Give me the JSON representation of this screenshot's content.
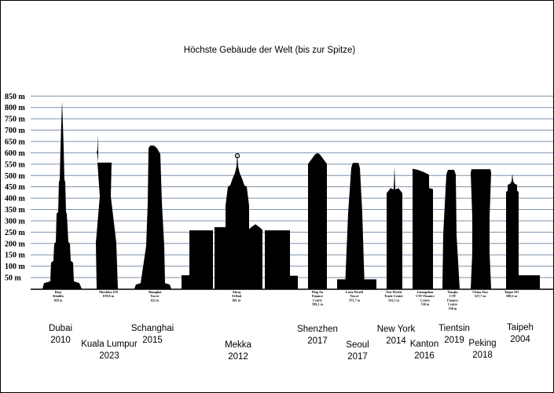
{
  "colors": {
    "grid": "#7f93ab",
    "building": "#000000",
    "background": "#ffffff"
  },
  "chart_data": {
    "type": "bar",
    "title": "Höchste Gebäude der Welt (bis zur Spitze)",
    "ylim": [
      0,
      850
    ],
    "ytick_labels": [
      "50 m",
      "100 m",
      "150 m",
      "200 m",
      "250 m",
      "300 m",
      "350 m",
      "400 m",
      "450 m",
      "500 m",
      "550 m",
      "600 m",
      "650 m",
      "700 m",
      "750 m",
      "800 m",
      "850 m"
    ],
    "grid": true,
    "categories": [
      {
        "label": [
          "Burj",
          "Khalifa",
          "828 m"
        ],
        "caption": [
          "Dubai",
          "2010"
        ],
        "height": 828
      },
      {
        "label": [
          "Merdeka 118",
          "678,9 m"
        ],
        "caption": [
          "Kuala Lumpur",
          "2023"
        ],
        "height": 678.9
      },
      {
        "label": [
          "Shanghai",
          "Tower",
          "632 m"
        ],
        "caption": [
          "Schanghai",
          "2015"
        ],
        "height": 632
      },
      {
        "label": [
          "Abraj",
          "Al Bait",
          "601 m"
        ],
        "caption": [
          "Mekka",
          "2012"
        ],
        "height": 601
      },
      {
        "label": [
          "Ping An",
          "Finance",
          "Centre",
          "599,1 m"
        ],
        "caption": [
          "Shenzhen",
          "2017"
        ],
        "height": 599.1
      },
      {
        "label": [
          "Lotte World",
          "Tower",
          "555,7 m"
        ],
        "caption": [
          "Seoul",
          "2017"
        ],
        "height": 555.7
      },
      {
        "label": [
          "One World",
          "Trade Center",
          "541,3 m"
        ],
        "caption": [
          "New York",
          "2014"
        ],
        "height": 541.3
      },
      {
        "label": [
          "Guangzhou",
          "CTF Finance",
          "Centre",
          "530 m"
        ],
        "caption": [
          "Kanton",
          "2016"
        ],
        "height": 530
      },
      {
        "label": [
          "Tianjin",
          "CTF",
          "Finance",
          "Centre",
          "530 m"
        ],
        "caption": [
          "Tientsin",
          "2019"
        ],
        "height": 530
      },
      {
        "label": [
          "China Zun",
          "527,7 m"
        ],
        "caption": [
          "Peking",
          "2018"
        ],
        "height": 527.7
      },
      {
        "label": [
          "Taipei 101",
          "509,2 m"
        ],
        "caption": [
          "Taipeh",
          "2004"
        ],
        "height": 509.2
      }
    ]
  }
}
